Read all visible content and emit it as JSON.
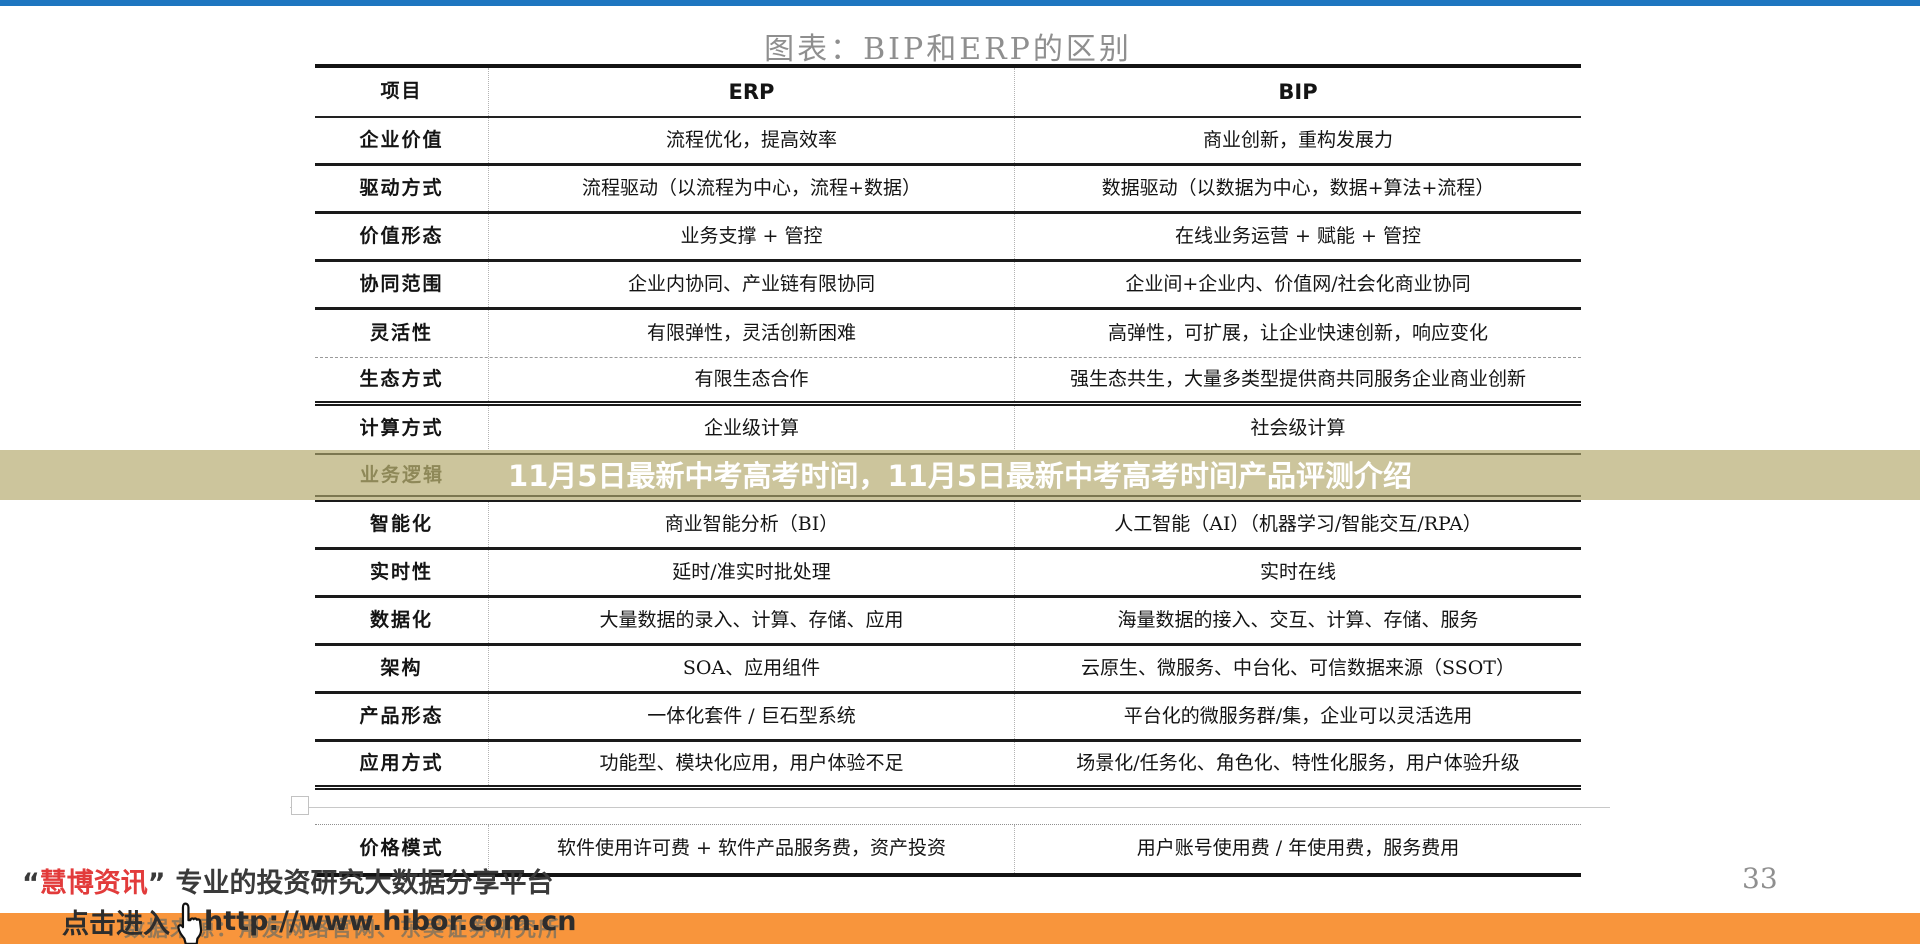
{
  "title": "图表：BIP和ERP的区别",
  "page_number": "33",
  "colors": {
    "top_bar": "#1e76c0",
    "banner": "#ccc59c",
    "banner_line": "#7c7750",
    "orange_bar": "#f8953c",
    "brand_red": "#e23b3b"
  },
  "table": {
    "headers": [
      "项目",
      "ERP",
      "BIP"
    ],
    "rows": [
      {
        "label": "企业价值",
        "erp": "流程优化，提高效率",
        "bip": "商业创新，重构发展力",
        "sep": "solid"
      },
      {
        "label": "驱动方式",
        "erp": "流程驱动（以流程为中心，流程+数据）",
        "bip": "数据驱动（以数据为中心，数据+算法+流程）",
        "sep": "solid"
      },
      {
        "label": "价值形态",
        "erp": "业务支撑 + 管控",
        "bip": "在线业务运营 + 赋能 + 管控",
        "sep": "solid"
      },
      {
        "label": "协同范围",
        "erp": "企业内协同、产业链有限协同",
        "bip": "企业间+企业内、价值网/社会化商业协同",
        "sep": "solid"
      },
      {
        "label": "灵活性",
        "erp": "有限弹性，灵活创新困难",
        "bip": "高弹性，可扩展，让企业快速创新，响应变化",
        "sep": "dashed"
      },
      {
        "label": "生态方式",
        "erp": "有限生态合作",
        "bip": "强生态共生，大量多类型提供商共同服务企业商业创新",
        "sep": "double"
      },
      {
        "label": "计算方式",
        "erp": "企业级计算",
        "bip": "社会级计算",
        "sep": "solid"
      },
      {
        "label": "业务逻辑",
        "erp": "",
        "bip": "",
        "sep": "solid"
      },
      {
        "label": "智能化",
        "erp": "商业智能分析（BI）",
        "bip": "人工智能（AI）（机器学习/智能交互/RPA）",
        "sep": "solid"
      },
      {
        "label": "实时性",
        "erp": "延时/准实时批处理",
        "bip": "实时在线",
        "sep": "solid"
      },
      {
        "label": "数据化",
        "erp": "大量数据的录入、计算、存储、应用",
        "bip": "海量数据的接入、交互、计算、存储、服务",
        "sep": "solid"
      },
      {
        "label": "架构",
        "erp": "SOA、应用组件",
        "bip": "云原生、微服务、中台化、可信数据来源（SSOT）",
        "sep": "solid"
      },
      {
        "label": "产品形态",
        "erp": "一体化套件 / 巨石型系统",
        "bip": "平台化的微服务群/集，企业可以灵活选用",
        "sep": "solid"
      },
      {
        "label": "应用方式",
        "erp": "功能型、模块化应用，用户体验不足",
        "bip": "场景化/任务化、角色化、特性化服务，用户体验升级",
        "sep": "double"
      },
      {
        "type": "spacer"
      },
      {
        "label": "价格模式",
        "erp": "软件使用许可费 + 软件产品服务费，资产投资",
        "bip": "用户账号使用费 / 年使用费，服务费用",
        "sep": "none"
      }
    ]
  },
  "banner": {
    "headline": "11月5日最新中考高考时间，11月5日最新中考高考时间产品评测介绍",
    "covered_row_label": "业务逻辑"
  },
  "footer": {
    "quote_open": "“",
    "brand": "慧博资讯",
    "quote_close": "”",
    "tagline": "专业的投资研究大数据分享平台",
    "click_label": "点击进入",
    "hand_icon": "hand-cursor-icon",
    "url": "http://www.hibor.com.cn",
    "source": "数据来源：用友网络官网、东吴证券研究所"
  }
}
